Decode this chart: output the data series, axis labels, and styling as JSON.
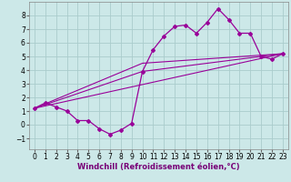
{
  "background_color": "#cce8e8",
  "grid_color": "#aacccc",
  "line_color": "#990099",
  "x_ticks": [
    0,
    1,
    2,
    3,
    4,
    5,
    6,
    7,
    8,
    9,
    10,
    11,
    12,
    13,
    14,
    15,
    16,
    17,
    18,
    19,
    20,
    21,
    22,
    23
  ],
  "y_ticks": [
    -1,
    0,
    1,
    2,
    3,
    4,
    5,
    6,
    7,
    8
  ],
  "ylim": [
    -1.8,
    9.0
  ],
  "xlim": [
    -0.5,
    23.5
  ],
  "main_x": [
    0,
    1,
    2,
    3,
    4,
    5,
    6,
    7,
    8,
    9,
    10,
    11,
    12,
    13,
    14,
    15,
    16,
    17,
    18,
    19,
    20,
    21,
    22,
    23
  ],
  "main_y": [
    1.2,
    1.6,
    1.3,
    1.0,
    0.3,
    0.3,
    -0.3,
    -0.7,
    -0.4,
    0.1,
    3.9,
    5.5,
    6.5,
    7.2,
    7.3,
    6.7,
    7.5,
    8.5,
    7.7,
    6.7,
    6.7,
    5.0,
    4.8,
    5.2
  ],
  "line2_x": [
    0,
    23
  ],
  "line2_y": [
    1.2,
    5.2
  ],
  "line3_x": [
    0,
    10,
    23
  ],
  "line3_y": [
    1.2,
    3.9,
    5.2
  ],
  "line4_x": [
    0,
    10,
    23
  ],
  "line4_y": [
    1.2,
    4.5,
    5.2
  ],
  "xlabel": "Windchill (Refroidissement éolien,°C)",
  "tick_fontsize": 5.5,
  "label_fontsize": 6.0
}
